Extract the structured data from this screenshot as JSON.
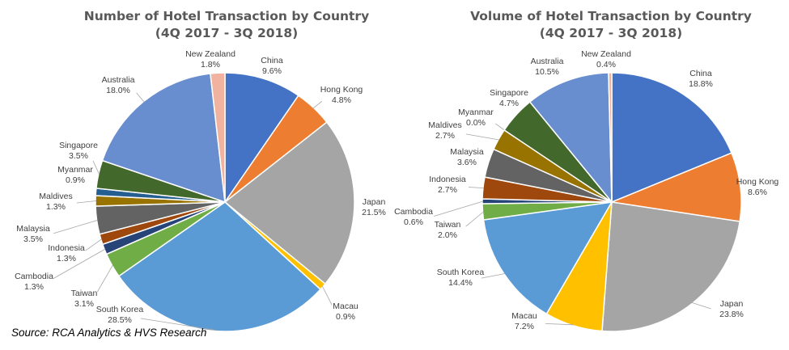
{
  "source_note": "Source: RCA Analytics & HVS Research",
  "chart_data": [
    {
      "type": "pie",
      "title": "Number of Hotel Transaction by Country",
      "subtitle": "(4Q 2017 - 3Q 2018)",
      "slices": [
        {
          "label": "China",
          "value": 9.6,
          "value_label": "9.6%",
          "color": "#4472C4"
        },
        {
          "label": "Hong Kong",
          "value": 4.8,
          "value_label": "4.8%",
          "color": "#ED7D31"
        },
        {
          "label": "Japan",
          "value": 21.5,
          "value_label": "21.5%",
          "color": "#A5A5A5"
        },
        {
          "label": "Macau",
          "value": 0.9,
          "value_label": "0.9%",
          "color": "#FFC000"
        },
        {
          "label": "South Korea",
          "value": 28.5,
          "value_label": "28.5%",
          "color": "#5B9BD5"
        },
        {
          "label": "Taiwan",
          "value": 3.1,
          "value_label": "3.1%",
          "color": "#70AD47"
        },
        {
          "label": "Cambodia",
          "value": 1.3,
          "value_label": "1.3%",
          "color": "#264478"
        },
        {
          "label": "Indonesia",
          "value": 1.3,
          "value_label": "1.3%",
          "color": "#9E480E"
        },
        {
          "label": "Malaysia",
          "value": 3.5,
          "value_label": "3.5%",
          "color": "#636363"
        },
        {
          "label": "Maldives",
          "value": 1.3,
          "value_label": "1.3%",
          "color": "#997300"
        },
        {
          "label": "Myanmar",
          "value": 0.9,
          "value_label": "0.9%",
          "color": "#255E91"
        },
        {
          "label": "Singapore",
          "value": 3.5,
          "value_label": "3.5%",
          "color": "#43682B"
        },
        {
          "label": "Australia",
          "value": 18.0,
          "value_label": "18.0%",
          "color": "#698ED0"
        },
        {
          "label": "New Zealand",
          "value": 1.8,
          "value_label": "1.8%",
          "color": "#F1B3A0"
        }
      ]
    },
    {
      "type": "pie",
      "title": "Volume  of Hotel Transaction by Country",
      "subtitle": "(4Q 2017 - 3Q 2018)",
      "slices": [
        {
          "label": "China",
          "value": 18.8,
          "value_label": "18.8%",
          "color": "#4472C4"
        },
        {
          "label": "Hong Kong",
          "value": 8.6,
          "value_label": "8.6%",
          "color": "#ED7D31"
        },
        {
          "label": "Japan",
          "value": 23.8,
          "value_label": "23.8%",
          "color": "#A5A5A5"
        },
        {
          "label": "Macau",
          "value": 7.2,
          "value_label": "7.2%",
          "color": "#FFC000"
        },
        {
          "label": "South Korea",
          "value": 14.4,
          "value_label": "14.4%",
          "color": "#5B9BD5"
        },
        {
          "label": "Taiwan",
          "value": 2.0,
          "value_label": "2.0%",
          "color": "#70AD47"
        },
        {
          "label": "Cambodia",
          "value": 0.6,
          "value_label": "0.6%",
          "color": "#264478"
        },
        {
          "label": "Indonesia",
          "value": 2.7,
          "value_label": "2.7%",
          "color": "#9E480E"
        },
        {
          "label": "Malaysia",
          "value": 3.6,
          "value_label": "3.6%",
          "color": "#636363"
        },
        {
          "label": "Maldives",
          "value": 2.7,
          "value_label": "2.7%",
          "color": "#997300"
        },
        {
          "label": "Myanmar",
          "value": 0.0,
          "value_label": "0.0%",
          "color": "#255E91"
        },
        {
          "label": "Singapore",
          "value": 4.7,
          "value_label": "4.7%",
          "color": "#43682B"
        },
        {
          "label": "Australia",
          "value": 10.5,
          "value_label": "10.5%",
          "color": "#698ED0"
        },
        {
          "label": "New Zealand",
          "value": 0.4,
          "value_label": "0.4%",
          "color": "#F1B3A0"
        }
      ]
    }
  ]
}
